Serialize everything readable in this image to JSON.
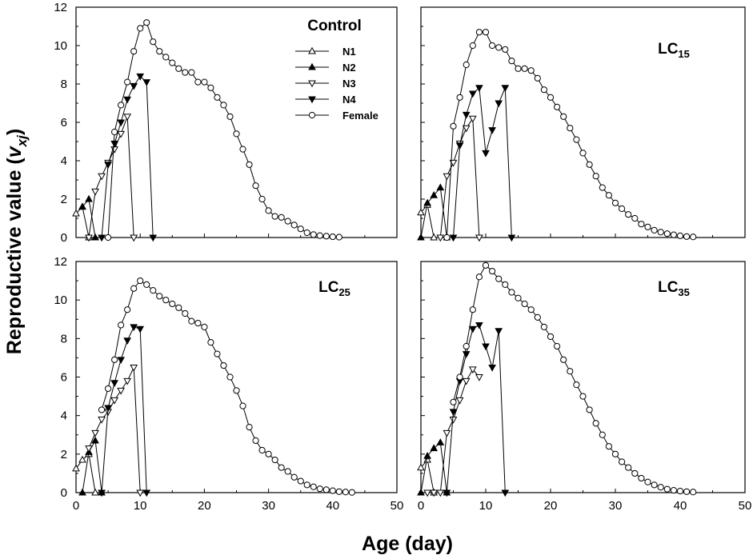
{
  "figure": {
    "ylabel": "Reproductive value (",
    "ylabel_var": "v",
    "ylabel_sub": "xj",
    "ylabel_close": ")",
    "xlabel": "Age (day)"
  },
  "chart_data": [
    {
      "type": "line",
      "title": "Control",
      "title_base": "Control",
      "title_sub": "",
      "xlim": [
        0,
        50
      ],
      "ylim": [
        0,
        12
      ],
      "xticks": [
        0,
        10,
        20,
        30,
        40,
        50
      ],
      "yticks": [
        0,
        2,
        4,
        6,
        8,
        10,
        12
      ],
      "legend": {
        "position": "top-center",
        "entries": [
          "N1",
          "N2",
          "N3",
          "N4",
          "Female"
        ]
      },
      "series": [
        {
          "name": "N1",
          "marker": "triangle-up-open",
          "x": [
            0,
            1,
            2
          ],
          "y": [
            1.25,
            1.6,
            0
          ]
        },
        {
          "name": "N2",
          "marker": "triangle-up-filled",
          "x": [
            1,
            2,
            3
          ],
          "y": [
            1.6,
            2.0,
            0
          ]
        },
        {
          "name": "N3",
          "marker": "triangle-down-open",
          "x": [
            2,
            3,
            4,
            5,
            6,
            7,
            8,
            9
          ],
          "y": [
            0,
            2.4,
            3.2,
            3.9,
            4.6,
            5.4,
            6.3,
            0
          ]
        },
        {
          "name": "N4",
          "marker": "triangle-down-filled",
          "x": [
            4,
            5,
            6,
            7,
            8,
            9,
            10,
            11,
            12
          ],
          "y": [
            0,
            3.8,
            4.9,
            6.0,
            7.2,
            7.9,
            8.4,
            8.1,
            0
          ]
        },
        {
          "name": "Female",
          "marker": "circle-open",
          "x": [
            5,
            6,
            7,
            8,
            9,
            10,
            11,
            12,
            13,
            14,
            15,
            16,
            17,
            18,
            19,
            20,
            21,
            22,
            23,
            24,
            25,
            26,
            27,
            28,
            29,
            30,
            31,
            32,
            33,
            34,
            35,
            36,
            37,
            38,
            39,
            40,
            41
          ],
          "y": [
            0,
            5.5,
            6.9,
            8.1,
            9.7,
            10.9,
            11.2,
            10.2,
            9.7,
            9.4,
            9.1,
            8.8,
            8.6,
            8.6,
            8.1,
            8.1,
            7.8,
            7.3,
            6.9,
            6.3,
            5.4,
            4.6,
            3.8,
            2.7,
            2.0,
            1.4,
            1.1,
            1.05,
            0.85,
            0.65,
            0.45,
            0.25,
            0.15,
            0.1,
            0.07,
            0.04,
            0.02
          ]
        }
      ]
    },
    {
      "type": "line",
      "title": "LC15",
      "title_base": "LC",
      "title_sub": "15",
      "xlim": [
        0,
        50
      ],
      "ylim": [
        0,
        12
      ],
      "xticks": [
        0,
        10,
        20,
        30,
        40,
        50
      ],
      "yticks": [
        0,
        2,
        4,
        6,
        8,
        10,
        12
      ],
      "series": [
        {
          "name": "N1",
          "marker": "triangle-up-open",
          "x": [
            0,
            1,
            2
          ],
          "y": [
            1.3,
            1.7,
            0
          ]
        },
        {
          "name": "N2",
          "marker": "triangle-up-filled",
          "x": [
            0,
            1,
            2,
            3,
            4
          ],
          "y": [
            0,
            1.8,
            2.2,
            2.6,
            0
          ]
        },
        {
          "name": "N3",
          "marker": "triangle-down-open",
          "x": [
            3,
            4,
            5,
            6,
            7,
            8,
            9
          ],
          "y": [
            0,
            3.2,
            3.9,
            4.9,
            5.7,
            6.2,
            0
          ]
        },
        {
          "name": "N4",
          "marker": "triangle-down-filled",
          "x": [
            5,
            6,
            7,
            8,
            9,
            10,
            11,
            12,
            13,
            14
          ],
          "y": [
            0,
            4.8,
            6.4,
            7.5,
            7.8,
            4.4,
            5.6,
            7.0,
            7.8,
            0
          ]
        },
        {
          "name": "Female",
          "marker": "circle-open",
          "x": [
            4,
            5,
            6,
            7,
            8,
            9,
            10,
            11,
            12,
            13,
            14,
            15,
            16,
            17,
            18,
            19,
            20,
            21,
            22,
            23,
            24,
            25,
            26,
            27,
            28,
            29,
            30,
            31,
            32,
            33,
            34,
            35,
            36,
            37,
            38,
            39,
            40,
            41,
            42
          ],
          "y": [
            0,
            5.8,
            7.3,
            9.0,
            10.0,
            10.7,
            10.7,
            10.0,
            9.9,
            9.8,
            9.2,
            8.8,
            8.8,
            8.7,
            8.3,
            7.7,
            7.3,
            6.8,
            6.3,
            5.7,
            5.1,
            4.4,
            3.8,
            3.2,
            2.6,
            2.2,
            1.8,
            1.5,
            1.2,
            1.0,
            0.7,
            0.55,
            0.38,
            0.28,
            0.2,
            0.14,
            0.09,
            0.05,
            0.03
          ]
        }
      ]
    },
    {
      "type": "line",
      "title": "LC25",
      "title_base": "LC",
      "title_sub": "25",
      "xlim": [
        0,
        50
      ],
      "ylim": [
        0,
        12
      ],
      "xticks": [
        0,
        10,
        20,
        30,
        40,
        50
      ],
      "yticks": [
        0,
        2,
        4,
        6,
        8,
        10,
        12
      ],
      "series": [
        {
          "name": "N1",
          "marker": "triangle-up-open",
          "x": [
            0,
            1,
            2,
            3
          ],
          "y": [
            1.25,
            1.7,
            2.0,
            0
          ]
        },
        {
          "name": "N2",
          "marker": "triangle-up-filled",
          "x": [
            1,
            2,
            3,
            4
          ],
          "y": [
            0,
            2.1,
            2.7,
            0
          ]
        },
        {
          "name": "N3",
          "marker": "triangle-down-open",
          "x": [
            2,
            3,
            4,
            5,
            6,
            7,
            8,
            9,
            10
          ],
          "y": [
            2.3,
            3.1,
            3.8,
            4.2,
            4.8,
            5.3,
            5.8,
            6.5,
            0
          ]
        },
        {
          "name": "N4",
          "marker": "triangle-down-filled",
          "x": [
            4,
            5,
            6,
            7,
            8,
            9,
            10,
            11
          ],
          "y": [
            0,
            4.4,
            5.7,
            6.9,
            7.9,
            8.6,
            8.5,
            0
          ]
        },
        {
          "name": "Female",
          "marker": "circle-open",
          "x": [
            4,
            5,
            6,
            7,
            8,
            9,
            10,
            11,
            12,
            13,
            14,
            15,
            16,
            17,
            18,
            19,
            20,
            21,
            22,
            23,
            24,
            25,
            26,
            27,
            28,
            29,
            30,
            31,
            32,
            33,
            34,
            35,
            36,
            37,
            38,
            39,
            40,
            41,
            42,
            43
          ],
          "y": [
            4.3,
            5.4,
            6.9,
            8.7,
            9.5,
            10.6,
            11.0,
            10.8,
            10.5,
            10.2,
            10.0,
            9.8,
            9.6,
            9.3,
            8.9,
            8.8,
            8.6,
            7.8,
            7.2,
            6.6,
            6.0,
            5.3,
            4.5,
            3.4,
            2.7,
            2.2,
            2.0,
            1.7,
            1.3,
            1.1,
            0.8,
            0.6,
            0.4,
            0.3,
            0.2,
            0.15,
            0.1,
            0.05,
            0.03,
            0.01
          ]
        }
      ]
    },
    {
      "type": "line",
      "title": "LC35",
      "title_base": "LC",
      "title_sub": "35",
      "xlim": [
        0,
        50
      ],
      "ylim": [
        0,
        12
      ],
      "xticks": [
        0,
        10,
        20,
        30,
        40,
        50
      ],
      "yticks": [
        0,
        2,
        4,
        6,
        8,
        10,
        12
      ],
      "series": [
        {
          "name": "N1",
          "marker": "triangle-up-open",
          "x": [
            0,
            1,
            2
          ],
          "y": [
            1.3,
            1.7,
            0
          ]
        },
        {
          "name": "N2",
          "marker": "triangle-up-filled",
          "x": [
            0,
            1,
            2,
            3,
            4
          ],
          "y": [
            0,
            1.9,
            2.3,
            2.6,
            0
          ]
        },
        {
          "name": "N3",
          "marker": "triangle-down-open",
          "x": [
            1,
            2,
            3,
            4,
            5,
            6,
            7,
            8,
            9
          ],
          "y": [
            0,
            0,
            0,
            3.1,
            3.8,
            4.8,
            5.8,
            6.4,
            6.0
          ]
        },
        {
          "name": "N4",
          "marker": "triangle-down-filled",
          "x": [
            4,
            5,
            6,
            7,
            8,
            9,
            10,
            11,
            12,
            13
          ],
          "y": [
            0,
            4.2,
            5.8,
            7.2,
            8.5,
            8.7,
            7.6,
            6.5,
            8.4,
            0
          ]
        },
        {
          "name": "Female",
          "marker": "circle-open",
          "x": [
            5,
            6,
            7,
            8,
            9,
            10,
            11,
            12,
            13,
            14,
            15,
            16,
            17,
            18,
            19,
            20,
            21,
            22,
            23,
            24,
            25,
            26,
            27,
            28,
            29,
            30,
            31,
            32,
            33,
            34,
            35,
            36,
            37,
            38,
            39,
            40,
            41,
            42
          ],
          "y": [
            4.7,
            6.0,
            7.6,
            9.5,
            11.2,
            11.8,
            11.5,
            11.1,
            10.8,
            10.4,
            10.1,
            9.8,
            9.5,
            9.1,
            8.6,
            8.1,
            7.6,
            6.9,
            6.3,
            5.6,
            5.0,
            4.3,
            3.6,
            3.0,
            2.4,
            2.0,
            1.6,
            1.3,
            1.0,
            0.75,
            0.55,
            0.4,
            0.28,
            0.18,
            0.12,
            0.08,
            0.05,
            0.03
          ]
        }
      ]
    }
  ]
}
